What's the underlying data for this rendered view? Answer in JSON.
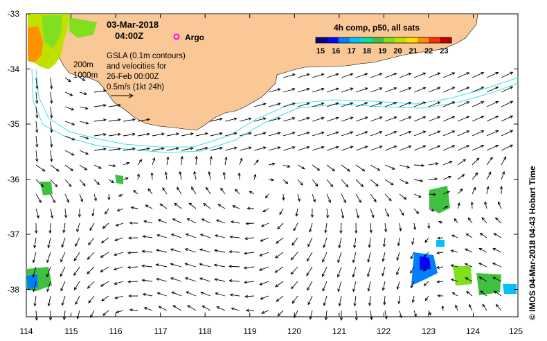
{
  "map": {
    "date": "03-Mar-2018",
    "time": "04:00Z",
    "argo_label": "Argo",
    "gsla_text": [
      "GSLA (0.1m contours)",
      "and velocities for",
      "26-Feb 00:00Z"
    ],
    "scale_text": "0.5m/s (1kt 24h)",
    "depth_labels": [
      "200m",
      "1000m"
    ],
    "colorbar": {
      "title": "4h comp, p50, all sats",
      "ticks": [
        "15",
        "16",
        "17",
        "18",
        "19",
        "20",
        "21",
        "22",
        "23"
      ]
    },
    "credit": "© IMOS 04-Mar-2018 04:43 Hobart Time",
    "lat_labels": [
      "-33",
      "-34",
      "-35",
      "-36",
      "-37",
      "-38"
    ],
    "lon_labels": [
      "114",
      "115",
      "116",
      "117",
      "118",
      "119",
      "120",
      "121",
      "122",
      "123",
      "124",
      "125"
    ],
    "colors": {
      "land": "#fac896",
      "isobath": "#40e0e0",
      "argo": "#ff00ff",
      "sst_scale": [
        "#000080",
        "#0000ff",
        "#0080ff",
        "#00c0ff",
        "#00e0a0",
        "#40c040",
        "#80e020",
        "#c0e000",
        "#ffe000",
        "#ff9000",
        "#ff3000",
        "#c00000"
      ]
    }
  }
}
